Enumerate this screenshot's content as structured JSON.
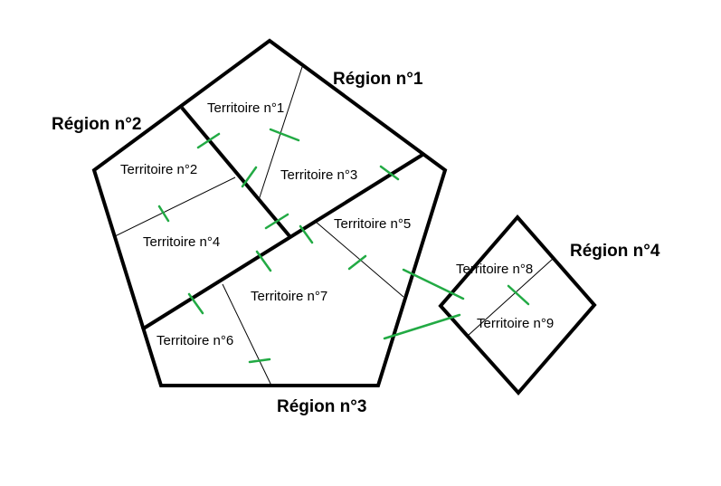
{
  "regions": [
    {
      "label": "Région n°1"
    },
    {
      "label": "Région n°2"
    },
    {
      "label": "Région n°3"
    },
    {
      "label": "Région n°4"
    }
  ],
  "territories": [
    {
      "label": "Territoire n°1"
    },
    {
      "label": "Territoire n°2"
    },
    {
      "label": "Territoire n°3"
    },
    {
      "label": "Territoire n°4"
    },
    {
      "label": "Territoire n°5"
    },
    {
      "label": "Territoire n°6"
    },
    {
      "label": "Territoire n°7"
    },
    {
      "label": "Territoire n°8"
    },
    {
      "label": "Territoire n°9"
    }
  ],
  "colors": {
    "border": "#000000",
    "connection": "#22aa44"
  }
}
